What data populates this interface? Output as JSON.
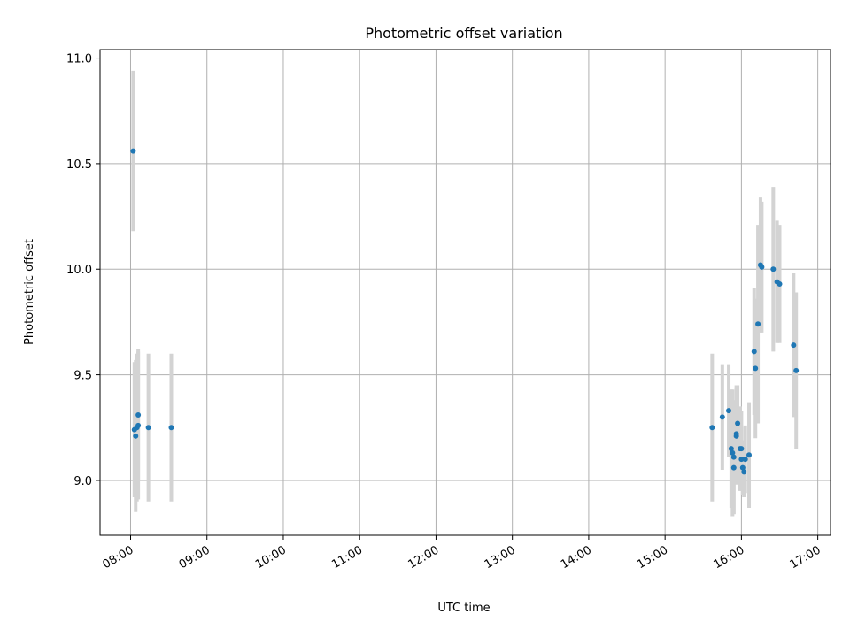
{
  "chart_data": {
    "type": "scatter",
    "title": "Photometric offset variation",
    "xlabel": "UTC time",
    "ylabel": "Photometric offset",
    "x_is_time": true,
    "xlim": [
      "07:36",
      "17:10"
    ],
    "ylim": [
      8.74,
      11.04
    ],
    "x_ticks": [
      "08:00",
      "09:00",
      "10:00",
      "11:00",
      "12:00",
      "13:00",
      "14:00",
      "15:00",
      "16:00",
      "17:00"
    ],
    "y_ticks": [
      9.0,
      9.5,
      10.0,
      10.5,
      11.0
    ],
    "y_tick_labels": [
      "9.0",
      "9.5",
      "10.0",
      "10.5",
      "11.0"
    ],
    "grid": true,
    "colors": {
      "marker": "#1f77b4",
      "errorbar": "#d3d3d3"
    },
    "series": [
      {
        "points": [
          {
            "t": "08:02",
            "y": 10.56,
            "err": 0.38
          },
          {
            "t": "08:03",
            "y": 9.24,
            "err": 0.32
          },
          {
            "t": "08:04",
            "y": 9.21,
            "err": 0.36
          },
          {
            "t": "08:05",
            "y": 9.25,
            "err": 0.35
          },
          {
            "t": "08:06",
            "y": 9.31,
            "err": 0.31
          },
          {
            "t": "08:06",
            "y": 9.26,
            "err": 0.35
          },
          {
            "t": "08:14",
            "y": 9.25,
            "err": 0.35
          },
          {
            "t": "08:32",
            "y": 9.25,
            "err": 0.35
          },
          {
            "t": "15:37",
            "y": 9.25,
            "err": 0.35
          },
          {
            "t": "15:45",
            "y": 9.3,
            "err": 0.25
          },
          {
            "t": "15:50",
            "y": 9.33,
            "err": 0.22
          },
          {
            "t": "15:52",
            "y": 9.15,
            "err": 0.28
          },
          {
            "t": "15:53",
            "y": 9.13,
            "err": 0.3
          },
          {
            "t": "15:54",
            "y": 9.11,
            "err": 0.27
          },
          {
            "t": "15:54",
            "y": 9.06,
            "err": 0.22
          },
          {
            "t": "15:56",
            "y": 9.21,
            "err": 0.23
          },
          {
            "t": "15:56",
            "y": 9.22,
            "err": 0.23
          },
          {
            "t": "15:57",
            "y": 9.27,
            "err": 0.18
          },
          {
            "t": "15:59",
            "y": 9.15,
            "err": 0.2
          },
          {
            "t": "16:00",
            "y": 9.15,
            "err": 0.18
          },
          {
            "t": "16:00",
            "y": 9.1,
            "err": 0.15
          },
          {
            "t": "16:01",
            "y": 9.06,
            "err": 0.13
          },
          {
            "t": "16:02",
            "y": 9.04,
            "err": 0.12
          },
          {
            "t": "16:03",
            "y": 9.1,
            "err": 0.16
          },
          {
            "t": "16:06",
            "y": 9.12,
            "err": 0.25
          },
          {
            "t": "16:10",
            "y": 9.61,
            "err": 0.3
          },
          {
            "t": "16:11",
            "y": 9.53,
            "err": 0.33
          },
          {
            "t": "16:13",
            "y": 9.74,
            "err": 0.47
          },
          {
            "t": "16:15",
            "y": 10.02,
            "err": 0.32
          },
          {
            "t": "16:16",
            "y": 10.01,
            "err": 0.31
          },
          {
            "t": "16:25",
            "y": 10.0,
            "err": 0.39
          },
          {
            "t": "16:28",
            "y": 9.94,
            "err": 0.29
          },
          {
            "t": "16:30",
            "y": 9.93,
            "err": 0.28
          },
          {
            "t": "16:41",
            "y": 9.64,
            "err": 0.34
          },
          {
            "t": "16:43",
            "y": 9.52,
            "err": 0.37
          }
        ]
      }
    ]
  }
}
